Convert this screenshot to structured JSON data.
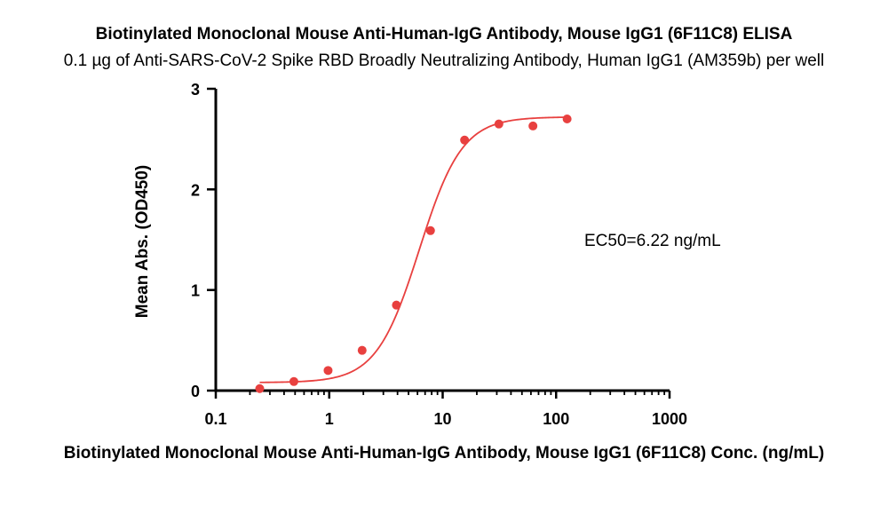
{
  "chart_data": {
    "type": "scatter",
    "title": "Biotinylated Monoclonal Mouse Anti-Human-IgG Antibody, Mouse IgG1 (6F11C8) ELISA",
    "subtitle": "0.1 µg of Anti-SARS-CoV-2 Spike RBD Broadly Neutralizing Antibody, Human IgG1 (AM359b) per well",
    "xlabel": "Biotinylated Monoclonal Mouse Anti-Human-IgG Antibody, Mouse IgG1 (6F11C8) Conc. (ng/mL)",
    "ylabel": "Mean Abs. (OD450)",
    "x_scale": "log",
    "xlim": [
      0.1,
      1000
    ],
    "ylim": [
      0,
      3
    ],
    "x_ticks": [
      "0.1",
      "1",
      "10",
      "100",
      "1000"
    ],
    "y_ticks": [
      "0",
      "1",
      "2",
      "3"
    ],
    "grid": false,
    "series": [
      {
        "x": [
          0.244,
          0.488,
          0.977,
          1.95,
          3.91,
          7.81,
          15.6,
          31.3,
          62.5,
          125
        ],
        "y": [
          0.02,
          0.09,
          0.2,
          0.4,
          0.85,
          1.59,
          2.49,
          2.65,
          2.63,
          2.7
        ],
        "color": "#e8403f"
      }
    ],
    "fit_curve": {
      "model": "4PL",
      "bottom": 0.08,
      "top": 2.72,
      "ec50": 6.22,
      "hill": 2.3,
      "x_range": [
        0.244,
        125
      ],
      "color": "#e8403f"
    },
    "annotations": [
      "EC50=6.22 ng/mL"
    ]
  }
}
